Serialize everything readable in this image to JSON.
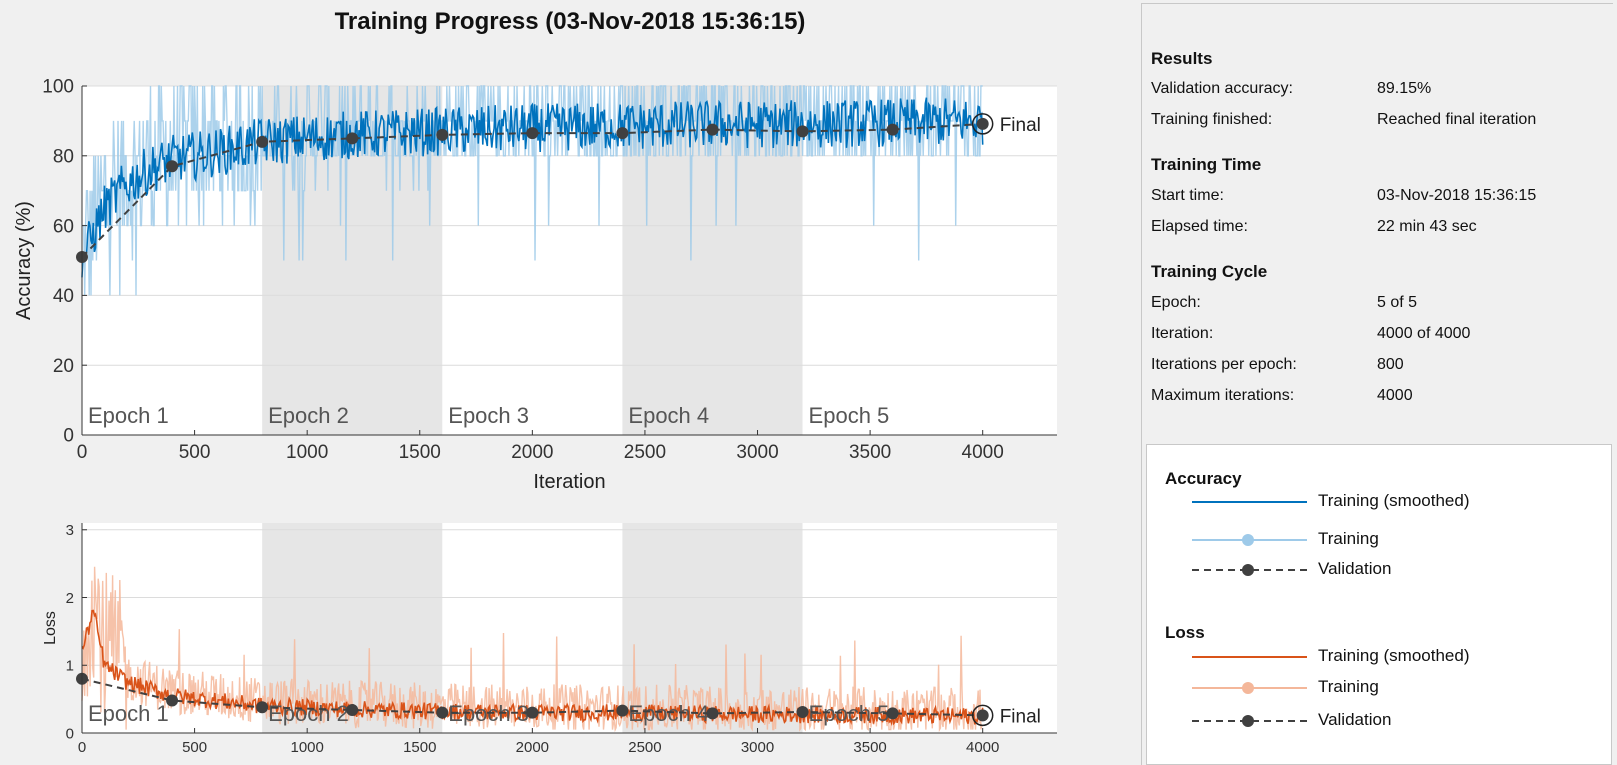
{
  "title": "Training Progress (03-Nov-2018 15:36:15)",
  "results_panel": {
    "sections": [
      {
        "title": "Results",
        "rows": [
          {
            "label": "Validation accuracy:",
            "value": "89.15%"
          },
          {
            "label": "Training finished:",
            "value": "Reached final iteration"
          }
        ]
      },
      {
        "title": "Training Time",
        "rows": [
          {
            "label": "Start time:",
            "value": "03-Nov-2018 15:36:15"
          },
          {
            "label": "Elapsed time:",
            "value": "22 min 43 sec"
          }
        ]
      },
      {
        "title": "Training Cycle",
        "rows": [
          {
            "label": "Epoch:",
            "value": "5 of 5"
          },
          {
            "label": "Iteration:",
            "value": "4000 of 4000"
          },
          {
            "label": "Iterations per epoch:",
            "value": "800"
          },
          {
            "label": "Maximum iterations:",
            "value": "4000"
          }
        ]
      }
    ]
  },
  "legend": {
    "accuracy": {
      "title": "Accuracy",
      "items": [
        {
          "label": "Training (smoothed)",
          "style": "solid",
          "color": "#0072bd"
        },
        {
          "label": "Training",
          "style": "light-marker",
          "color": "#9ecae9"
        },
        {
          "label": "Validation",
          "style": "dashed-marker",
          "color": "#404040"
        }
      ]
    },
    "loss": {
      "title": "Loss",
      "items": [
        {
          "label": "Training (smoothed)",
          "style": "solid",
          "color": "#d95319"
        },
        {
          "label": "Training",
          "style": "light-marker",
          "color": "#f4b79a"
        },
        {
          "label": "Validation",
          "style": "dashed-marker",
          "color": "#404040"
        }
      ]
    }
  },
  "colors": {
    "accuracy_smoothed": "#0072bd",
    "accuracy_raw": "#9ecae9",
    "loss_smoothed": "#d95319",
    "loss_raw": "#f4b79a",
    "validation": "#404040",
    "epoch_shade": "#e6e6e6"
  },
  "chart_data": [
    {
      "type": "line",
      "name": "accuracy",
      "ylabel": "Accuracy (%)",
      "xlabel": "Iteration",
      "xlim": [
        0,
        4330
      ],
      "ylim": [
        0,
        100
      ],
      "xticks": [
        0,
        500,
        1000,
        1500,
        2000,
        2500,
        3000,
        3500,
        4000
      ],
      "yticks": [
        0,
        20,
        40,
        60,
        80,
        100
      ],
      "epochs": [
        {
          "label": "Epoch 1",
          "start": 0,
          "end": 800
        },
        {
          "label": "Epoch 2",
          "start": 800,
          "end": 1600
        },
        {
          "label": "Epoch 3",
          "start": 1600,
          "end": 2400
        },
        {
          "label": "Epoch 4",
          "start": 2400,
          "end": 3200
        },
        {
          "label": "Epoch 5",
          "start": 3200,
          "end": 4000
        }
      ],
      "shaded_epochs": [
        2,
        4
      ],
      "validation": {
        "x": [
          0,
          400,
          800,
          1200,
          1600,
          2000,
          2400,
          2800,
          3200,
          3600,
          4000
        ],
        "y": [
          51,
          77,
          84,
          85,
          86,
          86.5,
          86.5,
          87.5,
          87,
          87.5,
          89.15
        ]
      },
      "training_smoothed": {
        "x": [
          0,
          100,
          200,
          300,
          400,
          600,
          800,
          1000,
          1200,
          1600,
          2000,
          2400,
          2800,
          3200,
          3600,
          4000
        ],
        "y": [
          50,
          65,
          72,
          76,
          79,
          81,
          84,
          85,
          86,
          87,
          88,
          88.5,
          89,
          89,
          89.5,
          90
        ]
      },
      "training_raw_range": [
        30,
        100
      ],
      "final_label": "Final"
    },
    {
      "type": "line",
      "name": "loss",
      "ylabel": "Loss",
      "xlabel": "",
      "xlim": [
        0,
        4330
      ],
      "ylim": [
        0,
        3.1
      ],
      "xticks": [
        0,
        500,
        1000,
        1500,
        2000,
        2500,
        3000,
        3500,
        4000
      ],
      "yticks": [
        0,
        1,
        2,
        3
      ],
      "epochs": [
        {
          "label": "Epoch 1",
          "start": 0,
          "end": 800
        },
        {
          "label": "Epoch 2",
          "start": 800,
          "end": 1600
        },
        {
          "label": "Epoch 3",
          "start": 1600,
          "end": 2400
        },
        {
          "label": "Epoch 4",
          "start": 2400,
          "end": 3200
        },
        {
          "label": "Epoch 5",
          "start": 3200,
          "end": 4000
        }
      ],
      "shaded_epochs": [
        2,
        4
      ],
      "validation": {
        "x": [
          0,
          400,
          800,
          1200,
          1600,
          2000,
          2400,
          2800,
          3200,
          3600,
          4000
        ],
        "y": [
          0.8,
          0.48,
          0.38,
          0.34,
          0.3,
          0.3,
          0.33,
          0.29,
          0.31,
          0.29,
          0.26
        ]
      },
      "training_smoothed": {
        "x": [
          0,
          50,
          100,
          200,
          400,
          800,
          1200,
          1600,
          2000,
          2400,
          2800,
          3200,
          3600,
          4000
        ],
        "y": [
          1.2,
          1.8,
          1.0,
          0.75,
          0.55,
          0.4,
          0.35,
          0.32,
          0.3,
          0.3,
          0.28,
          0.27,
          0.26,
          0.25
        ]
      },
      "training_raw_range": [
        0.05,
        2.9
      ],
      "final_label": "Final"
    }
  ]
}
